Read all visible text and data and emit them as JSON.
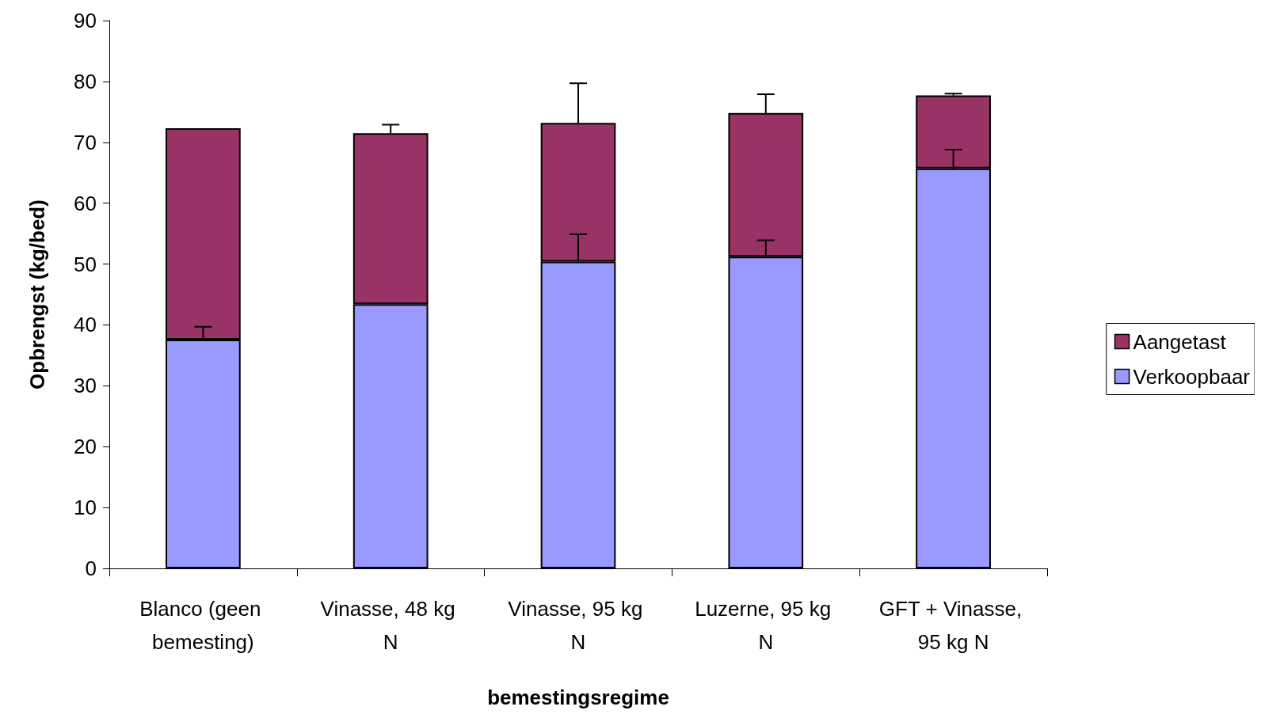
{
  "chart_data": {
    "type": "bar",
    "stacked": true,
    "xlabel": "bemestingsregime",
    "ylabel": "Opbrengst (kg/bed)",
    "categories": [
      "Blanco (geen bemesting)",
      "Vinasse, 48 kg N",
      "Vinasse, 95 kg N",
      "Luzerne, 95 kg N",
      "GFT + Vinasse, 95 kg N"
    ],
    "series": [
      {
        "name": "Verkoopbaar",
        "color": "#9999ff",
        "values": [
          37.6,
          43.4,
          50.4,
          51.2,
          65.7
        ],
        "errors": [
          [
            37.6,
            39.7
          ],
          null,
          [
            50.4,
            54.9
          ],
          [
            51.2,
            53.9
          ],
          [
            65.7,
            68.8
          ]
        ]
      },
      {
        "name": "Aangetast",
        "color": "#993366",
        "values": [
          34.7,
          28.1,
          22.8,
          23.6,
          12.0
        ],
        "errors": [
          null,
          [
            71.5,
            72.9
          ],
          [
            73.2,
            79.7
          ],
          [
            74.8,
            77.9
          ],
          [
            77.7,
            78.0
          ]
        ]
      }
    ],
    "ylim": [
      0,
      90
    ],
    "yticks": [
      0,
      10,
      20,
      30,
      40,
      50,
      60,
      70,
      80,
      90
    ],
    "grid": false,
    "legend": "right"
  }
}
